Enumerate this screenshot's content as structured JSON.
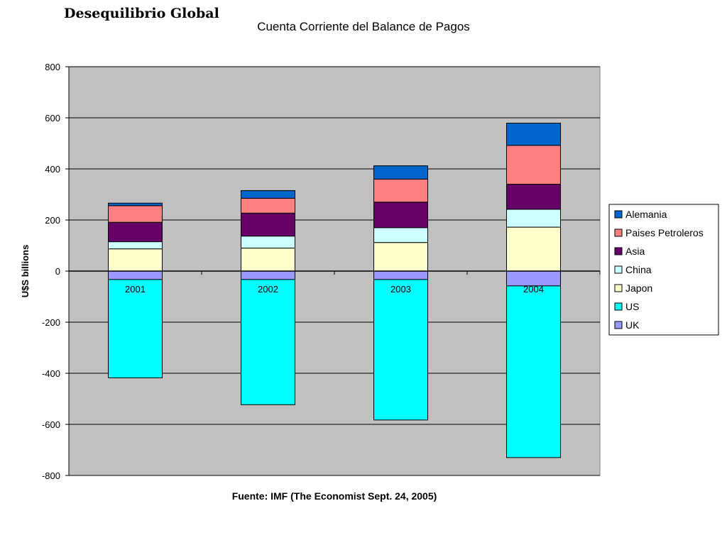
{
  "slide_title": "Desequilibrio Global",
  "chart_data": {
    "type": "bar",
    "stacked": true,
    "title": "Cuenta Corriente del Balance de Pagos",
    "xlabel": "Fuente: IMF (The Economist Sept. 24, 2005)",
    "ylabel": "U$S billions",
    "ylim": [
      -800,
      800
    ],
    "yticks": [
      800,
      600,
      400,
      200,
      0,
      -200,
      -400,
      -600,
      -800
    ],
    "grid": true,
    "legend_position": "right",
    "categories": [
      "2001",
      "2002",
      "2003",
      "2004"
    ],
    "series": [
      {
        "name": "UK",
        "color": "#9999ff",
        "values": [
          -33,
          -33,
          -33,
          -58
        ]
      },
      {
        "name": "US",
        "color": "#00ffff",
        "values": [
          -385,
          -490,
          -550,
          -672
        ]
      },
      {
        "name": "Japon",
        "color": "#ffffcc",
        "values": [
          87,
          90,
          112,
          172
        ]
      },
      {
        "name": "China",
        "color": "#ccffff",
        "values": [
          28,
          47,
          58,
          70
        ]
      },
      {
        "name": "Asia",
        "color": "#660066",
        "values": [
          76,
          90,
          100,
          98
        ]
      },
      {
        "name": "Paises Petroleros",
        "color": "#ff8080",
        "values": [
          65,
          58,
          90,
          152
        ]
      },
      {
        "name": "Alemania",
        "color": "#0066cc",
        "values": [
          10,
          30,
          52,
          87
        ]
      }
    ],
    "legend_order": [
      "Alemania",
      "Paises Petroleros",
      "Asia",
      "China",
      "Japon",
      "US",
      "UK"
    ]
  }
}
